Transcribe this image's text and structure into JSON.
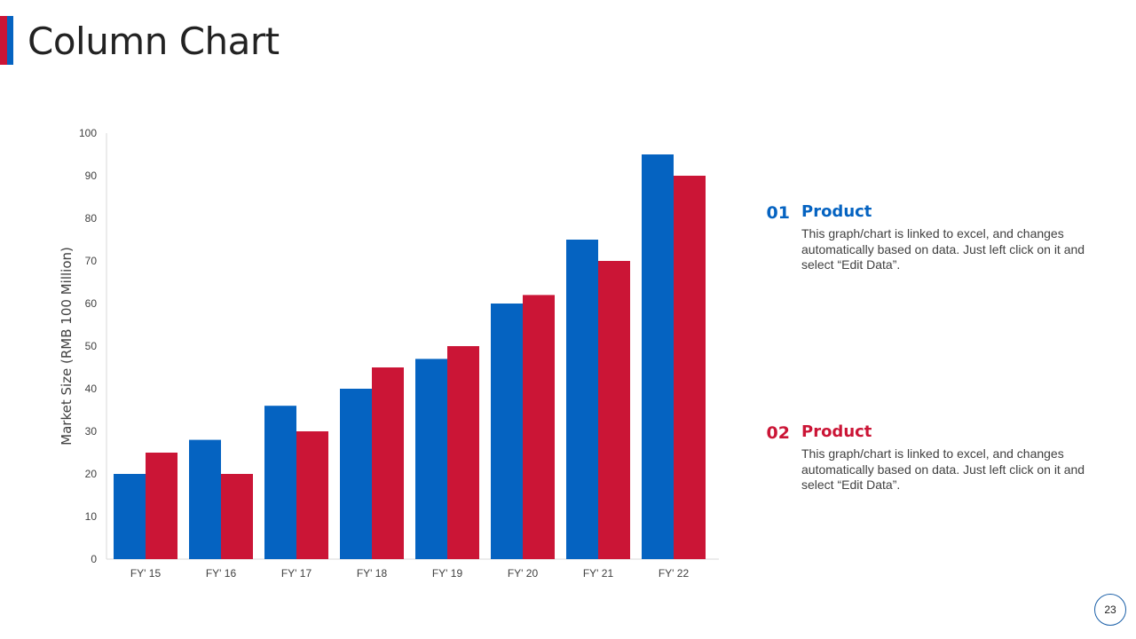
{
  "page": {
    "title": "Column Chart",
    "page_number": "23",
    "colors": {
      "blue": "#0563C1",
      "red": "#CB1536"
    }
  },
  "legend": [
    {
      "number": "01",
      "title": "Product",
      "color": "#0563C1",
      "text": "This graph/chart is linked to excel, and changes automatically based on data. Just left click on it and select “Edit Data”."
    },
    {
      "number": "02",
      "title": "Product",
      "color": "#CB1536",
      "text": "This graph/chart is linked to excel, and changes automatically based on data. Just left click on it and select “Edit Data”."
    }
  ],
  "chart_data": {
    "type": "bar",
    "title": "",
    "xlabel": "",
    "ylabel": "Market Size (RMB 100 Million)",
    "ylim": [
      0,
      100
    ],
    "yticks": [
      0,
      10,
      20,
      30,
      40,
      50,
      60,
      70,
      80,
      90,
      100
    ],
    "grid": false,
    "categories": [
      "FY' 15",
      "FY' 16",
      "FY' 17",
      "FY' 18",
      "FY' 19",
      "FY' 20",
      "FY' 21",
      "FY' 22"
    ],
    "series": [
      {
        "name": "Product 01",
        "color": "#0563C1",
        "values": [
          20,
          28,
          36,
          40,
          47,
          60,
          75,
          95
        ]
      },
      {
        "name": "Product 02",
        "color": "#CB1536",
        "values": [
          25,
          20,
          30,
          45,
          50,
          62,
          70,
          90
        ]
      }
    ]
  }
}
